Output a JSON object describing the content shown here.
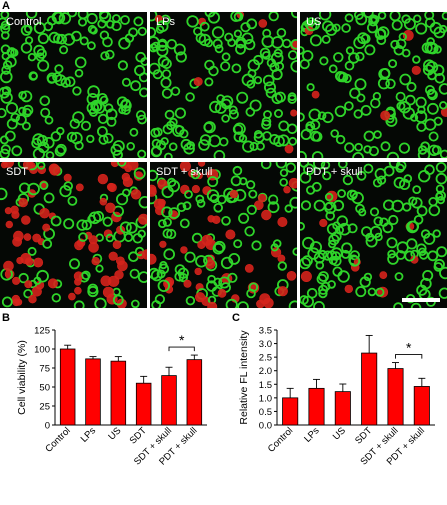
{
  "panels": {
    "A": "A",
    "B": "B",
    "C": "C"
  },
  "micrographs": [
    {
      "label": "Control",
      "dead_fraction": 0.0
    },
    {
      "label": "LPs",
      "dead_fraction": 0.06
    },
    {
      "label": "US",
      "dead_fraction": 0.07
    },
    {
      "label": "SDT",
      "dead_fraction": 0.55
    },
    {
      "label": "SDT + skull",
      "dead_fraction": 0.4
    },
    {
      "label": "PDT + skull",
      "dead_fraction": 0.05
    }
  ],
  "colors": {
    "live": "#2fd42a",
    "dead": "#d5241c",
    "bar": "#ff0000",
    "background": "#050805"
  },
  "chart_data": [
    {
      "type": "bar",
      "panel": "B",
      "categories": [
        "Control",
        "LPs",
        "US",
        "SDT",
        "SDT + skull",
        "PDT + skull"
      ],
      "values": [
        100,
        87,
        84,
        55,
        65,
        86
      ],
      "errors": [
        5,
        3,
        6,
        9,
        11,
        6
      ],
      "ylabel": "Cell viability (%)",
      "xlabel": "",
      "ylim": [
        0,
        125
      ],
      "yticks": [
        "0",
        "25",
        "50",
        "75",
        "100",
        "125"
      ],
      "significance": {
        "between": [
          4,
          5
        ],
        "label": "*"
      }
    },
    {
      "type": "bar",
      "panel": "C",
      "categories": [
        "Control",
        "LPs",
        "US",
        "SDT",
        "SDT + skull",
        "PDT + skull"
      ],
      "values": [
        1.0,
        1.35,
        1.23,
        2.65,
        2.08,
        1.42
      ],
      "errors": [
        0.35,
        0.33,
        0.28,
        0.65,
        0.22,
        0.3
      ],
      "ylabel": "Relative FL intensity",
      "xlabel": "",
      "ylim": [
        0,
        3.5
      ],
      "yticks": [
        "0.0",
        "0.5",
        "1.0",
        "1.5",
        "2.0",
        "2.5",
        "3.0",
        "3.5"
      ],
      "significance": {
        "between": [
          4,
          5
        ],
        "label": "*"
      }
    }
  ]
}
